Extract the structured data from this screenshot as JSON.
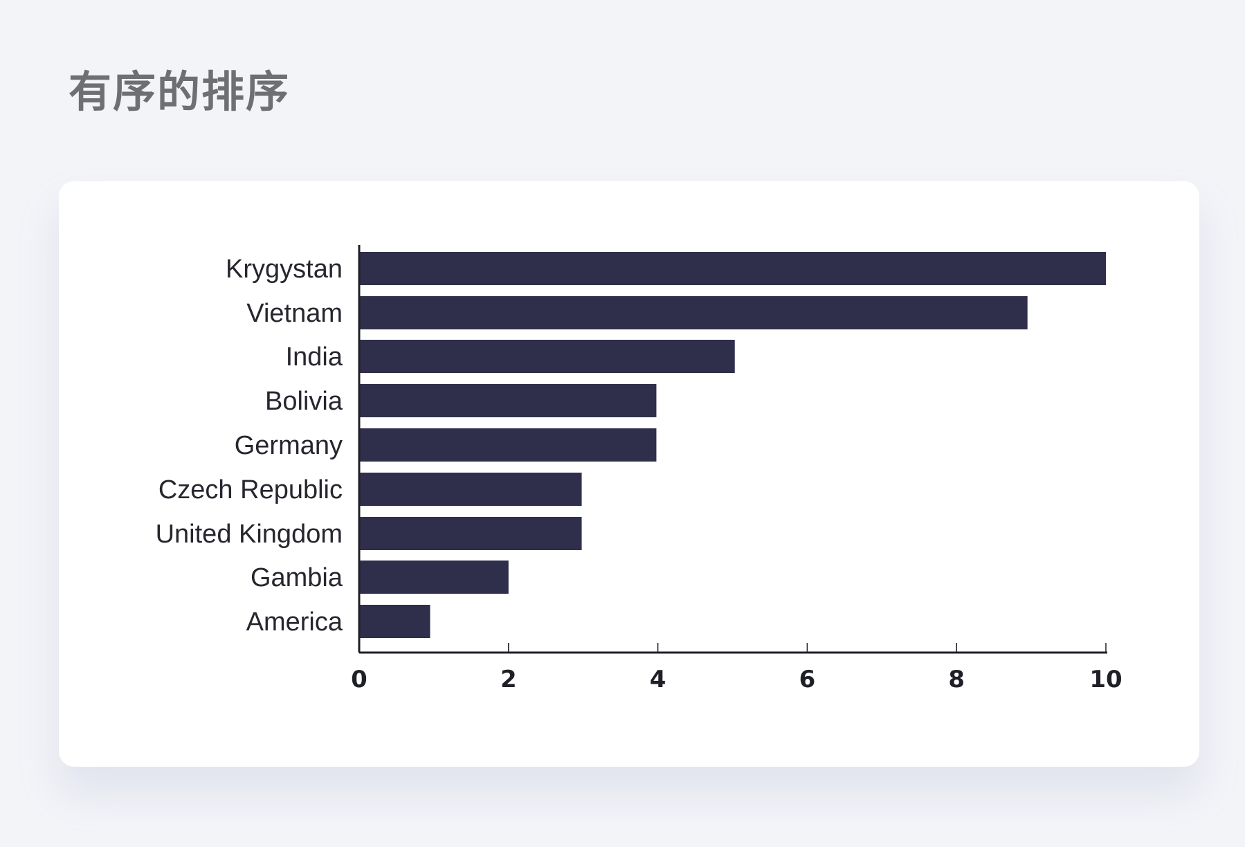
{
  "page": {
    "title": "有序的排序"
  },
  "colors": {
    "background": "#f3f4f8",
    "card": "#ffffff",
    "bar": "#2f2e4b",
    "axis": "#1f1f27",
    "title": "#6e6f73"
  },
  "chart_data": {
    "type": "bar",
    "orientation": "horizontal",
    "title": "",
    "xlabel": "",
    "ylabel": "",
    "categories": [
      "Krygystan",
      "Vietnam",
      "India",
      "Bolivia",
      "Germany",
      "Czech Republic",
      "United Kingdom",
      "Gambia",
      "America"
    ],
    "values": [
      10,
      8.95,
      5.03,
      3.98,
      3.98,
      2.98,
      2.98,
      2.0,
      0.95
    ],
    "xlim": [
      0,
      10
    ],
    "xticks": [
      0,
      2,
      4,
      6,
      8,
      10
    ],
    "grid": false,
    "legend": "none"
  }
}
